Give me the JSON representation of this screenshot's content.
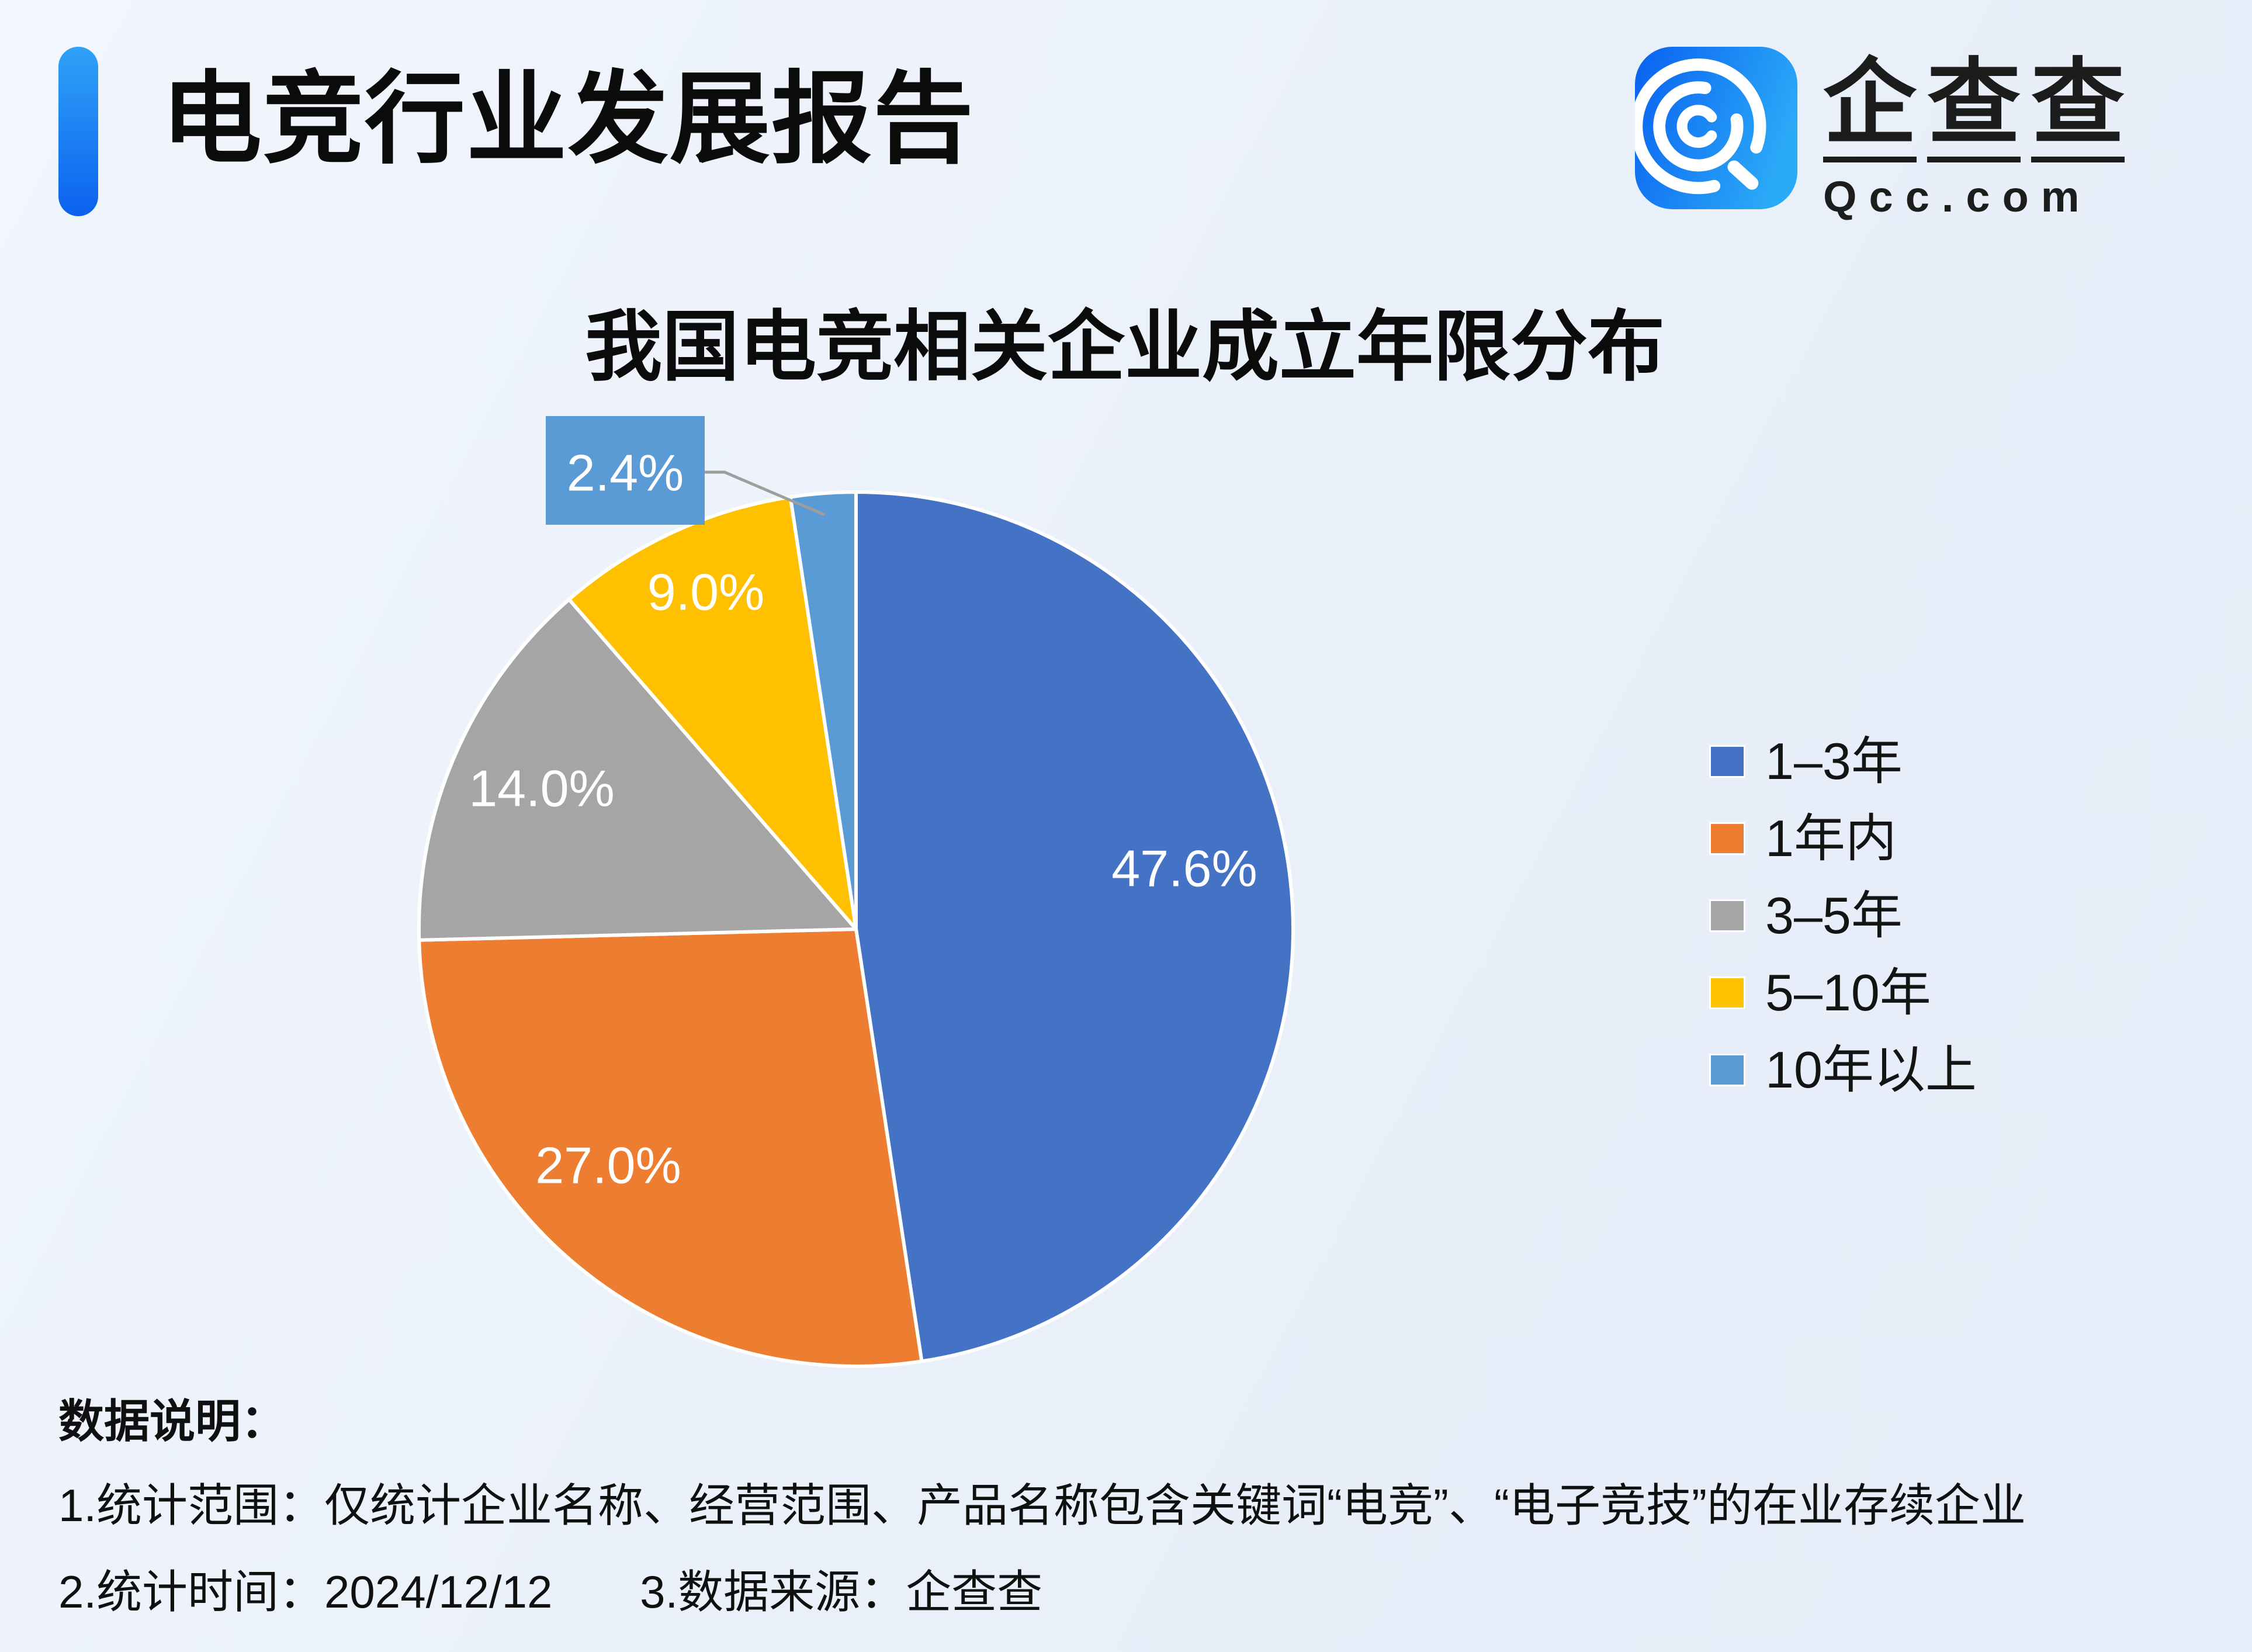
{
  "header": {
    "title": "电竞行业发展报告",
    "accent_color": "#1677F2"
  },
  "logo": {
    "brand": "企查查",
    "domain": "Qcc.com",
    "icon": "qcc-q-spiral-icon",
    "icon_gradient_start": "#0A63F0",
    "icon_gradient_end": "#2BAAF8"
  },
  "chart_data": {
    "type": "pie",
    "title": "我国电竞相关企业成立年限分布",
    "unit": "percent",
    "direction": "clockwise",
    "start_angle_deg": 0,
    "legend_position": "right",
    "label_color": "#FFFFFF",
    "callout_line_color": "#9E9E9E",
    "slices": [
      {
        "label": "1–3年",
        "value": 47.6,
        "display": "47.6%",
        "color": "#4472C4"
      },
      {
        "label": "1年内",
        "value": 27.0,
        "display": "27.0%",
        "color": "#ED7D31"
      },
      {
        "label": "3–5年",
        "value": 14.0,
        "display": "14.0%",
        "color": "#A5A5A5"
      },
      {
        "label": "5–10年",
        "value": 9.0,
        "display": "9.0%",
        "color": "#FFC000"
      },
      {
        "label": "10年以上",
        "value": 2.4,
        "display": "2.4%",
        "color": "#5B9BD5",
        "callout": true
      }
    ]
  },
  "footnotes": {
    "heading": "数据说明：",
    "scope": "1.统计范围：仅统计企业名称、经营范围、产品名称包含关键词“电竞”、“电子竞技”的在业存续企业",
    "date": "2.统计时间：2024/12/12",
    "source": "3.数据来源：企查查"
  }
}
